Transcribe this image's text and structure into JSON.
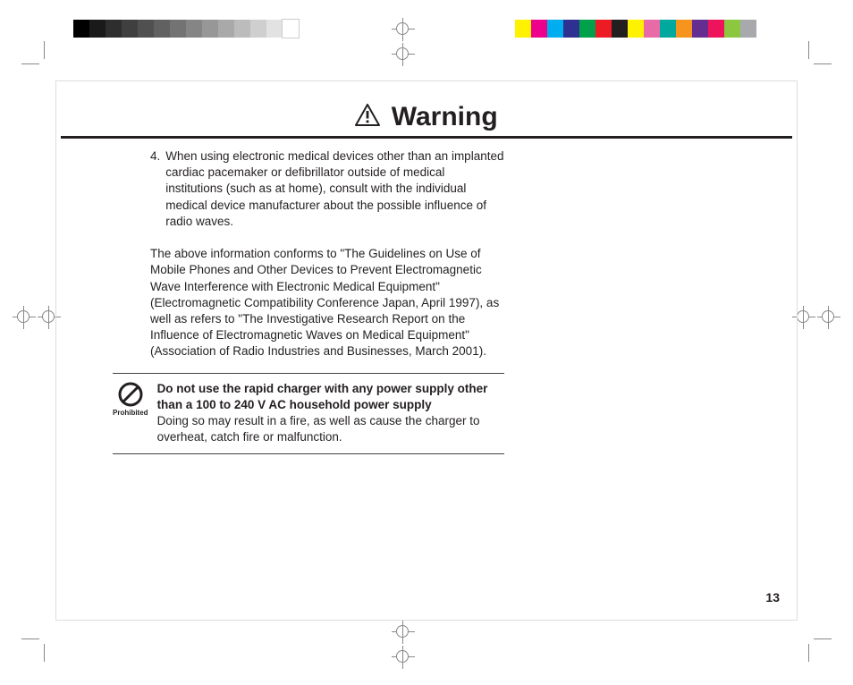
{
  "title": "Warning",
  "list_item": {
    "number": "4.",
    "text": "When using electronic medical devices other than an implanted cardiac pacemaker or defibrillator outside of medical institutions (such as at home), consult with the individual medical device manufacturer about the possible influence of radio waves."
  },
  "conformance_paragraph": "The above information conforms to \"The Guidelines on Use of Mobile Phones and Other Devices to Prevent Electromagnetic Wave Interference with Electronic Medical Equipment\" (Electromagnetic Compatibility Conference Japan, April 1997), as well as refers to \"The Investigative Research Report on the Influence of Electromagnetic Waves on Medical Equipment\" (Association of Radio Industries and Businesses, March 2001).",
  "prohibited_label": "Prohibited",
  "warning_bold": "Do not use the rapid charger with any power supply other than a 100 to 240 V AC household power supply",
  "warning_body": "Doing so may result in a fire, as well as cause the charger to overheat, catch fire or malfunction.",
  "page_number": "13",
  "grayscale_bar": [
    "#000000",
    "#1a1a1a",
    "#2e2e2e",
    "#3f3f3f",
    "#505050",
    "#616161",
    "#737373",
    "#858585",
    "#979797",
    "#a9a9a9",
    "#bcbcbc",
    "#cfcfcf",
    "#e2e2e2",
    "#ffffff"
  ],
  "color_bar": [
    "#fff200",
    "#ec008c",
    "#00aeef",
    "#2e3192",
    "#00a14b",
    "#ed1c24",
    "#231f20",
    "#fff200",
    "#e86ba7",
    "#00a99d",
    "#f7941d",
    "#662d91",
    "#ed145b",
    "#8dc63f",
    "#a7a9ac"
  ],
  "text_color": "#231f20",
  "background_color": "#ffffff"
}
